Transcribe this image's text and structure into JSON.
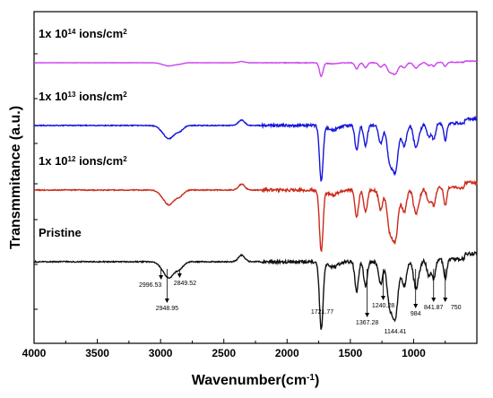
{
  "chart_data": {
    "type": "line",
    "xlabel": "Wavenumber(cm⁻¹)",
    "ylabel": "Transmmitance (a.u.)",
    "xlim": [
      4000,
      500
    ],
    "x_reversed": true,
    "xticks": [
      4000,
      3500,
      3000,
      2500,
      2000,
      1500,
      1000
    ],
    "y_tick_labels": "none",
    "grid": false,
    "series": [
      {
        "name": "1x 10¹⁴ ions/cm²",
        "base": "1x 10",
        "exp": "14",
        "unit": " ions/cm",
        "unit_exp": "2",
        "color": "#cc44ee",
        "offset": 3,
        "scale": 0.22
      },
      {
        "name": "1x 10¹³ ions/cm²",
        "base": "1x 10",
        "exp": "13",
        "unit": " ions/cm",
        "unit_exp": "2",
        "color": "#1515dd",
        "offset": 2,
        "scale": 0.9
      },
      {
        "name": "1x 10¹² ions/cm²",
        "base": "1x 10",
        "exp": "12",
        "unit": " ions/cm",
        "unit_exp": "2",
        "color": "#cc2a1a",
        "offset": 1,
        "scale": 1.0
      },
      {
        "name": "Pristine",
        "base": "Pristine",
        "exp": "",
        "unit": "",
        "unit_exp": "",
        "color": "#111111",
        "offset": 0,
        "scale": 1.1
      }
    ],
    "peaks": [
      {
        "x": 2960,
        "depth": 0.16,
        "width": 40
      },
      {
        "x": 2920,
        "depth": 0.18,
        "width": 35
      },
      {
        "x": 2850,
        "depth": 0.12,
        "width": 30
      },
      {
        "x": 2360,
        "depth": -0.12,
        "width": 25
      },
      {
        "x": 1730,
        "depth": 1.25,
        "width": 14
      },
      {
        "x": 1640,
        "depth": 0.1,
        "width": 40
      },
      {
        "x": 1450,
        "depth": 0.55,
        "width": 14
      },
      {
        "x": 1380,
        "depth": 0.45,
        "width": 14
      },
      {
        "x": 1260,
        "depth": 0.4,
        "width": 16
      },
      {
        "x": 1190,
        "depth": 0.75,
        "width": 20
      },
      {
        "x": 1145,
        "depth": 1.0,
        "width": 22
      },
      {
        "x": 1075,
        "depth": 0.45,
        "width": 18
      },
      {
        "x": 985,
        "depth": 0.45,
        "width": 16
      },
      {
        "x": 960,
        "depth": 0.2,
        "width": 20
      },
      {
        "x": 880,
        "depth": 0.3,
        "width": 16
      },
      {
        "x": 840,
        "depth": 0.35,
        "width": 14
      },
      {
        "x": 750,
        "depth": 0.38,
        "width": 12
      }
    ],
    "annotations": [
      {
        "text": "2996.53",
        "x": 2996.53,
        "arrow": true
      },
      {
        "text": "2948.95",
        "x": 2948.95,
        "arrow": true
      },
      {
        "text": "2849.52",
        "x": 2849.52,
        "arrow": true
      },
      {
        "text": "1721.77",
        "x": 1721.77,
        "arrow": false
      },
      {
        "text": "1367.28",
        "x": 1367.28,
        "arrow": true
      },
      {
        "text": "1240.28",
        "x": 1240.28,
        "arrow": true
      },
      {
        "text": "1144.41",
        "x": 1144.41,
        "arrow": false
      },
      {
        "text": "984",
        "x": 984,
        "arrow": true
      },
      {
        "text": "841.87",
        "x": 841.87,
        "arrow": true
      },
      {
        "text": "750",
        "x": 750,
        "arrow": true
      }
    ]
  }
}
